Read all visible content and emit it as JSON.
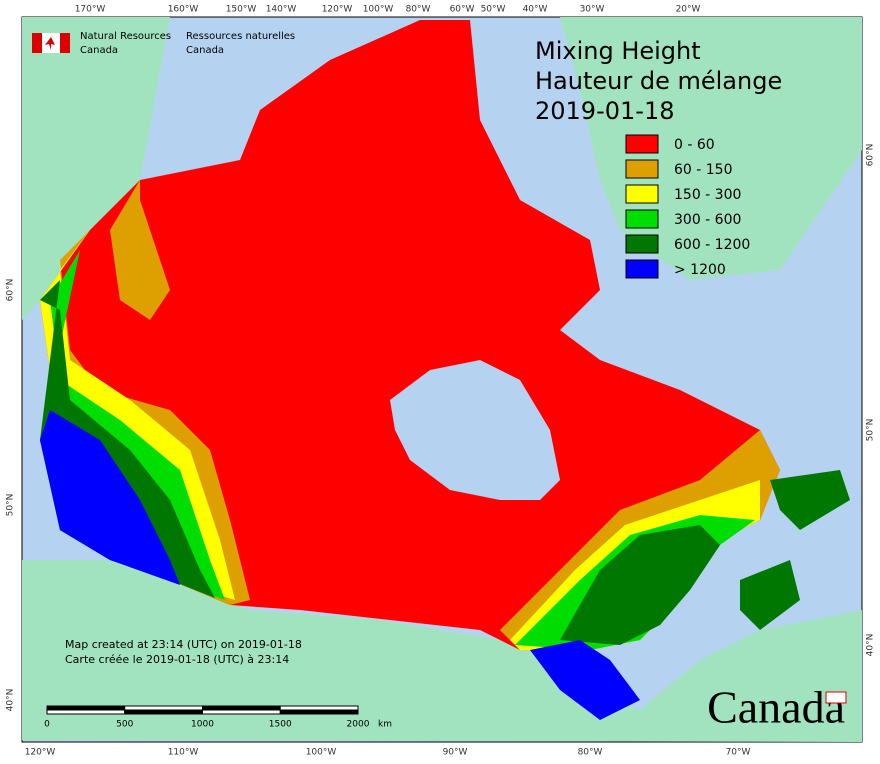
{
  "header": {
    "org_en": [
      "Natural Resources",
      "Canada"
    ],
    "org_fr": [
      "Ressources naturelles",
      "Canada"
    ]
  },
  "title": [
    "Mixing Height",
    "Hauteur de mélange",
    "2019-01-18"
  ],
  "legend": [
    {
      "label": "0 - 60",
      "color": "#ff0000"
    },
    {
      "label": "60 - 150",
      "color": "#dda000"
    },
    {
      "label": "150 - 300",
      "color": "#ffff00"
    },
    {
      "label": "300 - 600",
      "color": "#00dd00"
    },
    {
      "label": "600 - 1200",
      "color": "#007700"
    },
    {
      "label": "> 1200",
      "color": "#0000ff"
    }
  ],
  "graticule": {
    "top": [
      "170°W",
      "160°W",
      "150°W",
      "140°W",
      "120°W",
      "100°W",
      "80°W",
      "60°W",
      "50°W",
      "40°W",
      "30°W",
      "20°W"
    ],
    "bottom": [
      "120°W",
      "110°W",
      "100°W",
      "90°W",
      "80°W",
      "70°W"
    ],
    "left": [
      "60°N",
      "50°N",
      "40°N"
    ],
    "right": [
      "60°N",
      "50°N",
      "40°N"
    ]
  },
  "credit": [
    "Map created at 23:14 (UTC) on 2019-01-18",
    "Carte créée le 2019-01-18 (UTC) à 23:14"
  ],
  "scale_bar": {
    "ticks": [
      0,
      500,
      1000,
      1500,
      2000
    ],
    "unit": "km"
  },
  "wordmark": "Canada"
}
